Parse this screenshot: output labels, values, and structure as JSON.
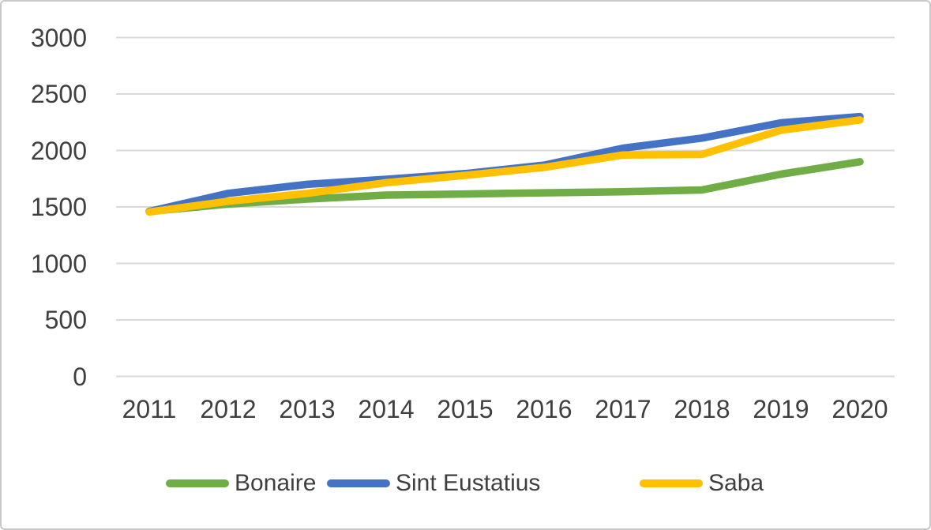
{
  "chart": {
    "background_color": "#FFFFFF",
    "border_color": "#C8C8C8",
    "gridline_color": "#D9D9D9",
    "axis_text_color": "#3F3F3F"
  },
  "chart_data": {
    "type": "line",
    "title": "",
    "xlabel": "",
    "ylabel": "",
    "categories": [
      "2011",
      "2012",
      "2013",
      "2014",
      "2015",
      "2016",
      "2017",
      "2018",
      "2019",
      "2020"
    ],
    "series": [
      {
        "name": "Bonaire",
        "color": "#70AD47",
        "values": [
          1460,
          1525,
          1570,
          1605,
          1615,
          1625,
          1635,
          1650,
          1790,
          1900
        ]
      },
      {
        "name": "Sint Eustatius",
        "color": "#4472C4",
        "values": [
          1460,
          1620,
          1700,
          1745,
          1795,
          1870,
          2020,
          2110,
          2245,
          2300
        ]
      },
      {
        "name": "Saba",
        "color": "#FFC000",
        "values": [
          1455,
          1550,
          1620,
          1715,
          1780,
          1850,
          1960,
          1965,
          2180,
          2270
        ]
      }
    ],
    "ylim": [
      0,
      3000
    ],
    "y_tick_step": 500,
    "y_tick_labels": [
      "3000",
      "2500",
      "2000",
      "1500",
      "1000",
      "500",
      "0"
    ],
    "grid": "horizontal",
    "legend_position": "bottom"
  }
}
